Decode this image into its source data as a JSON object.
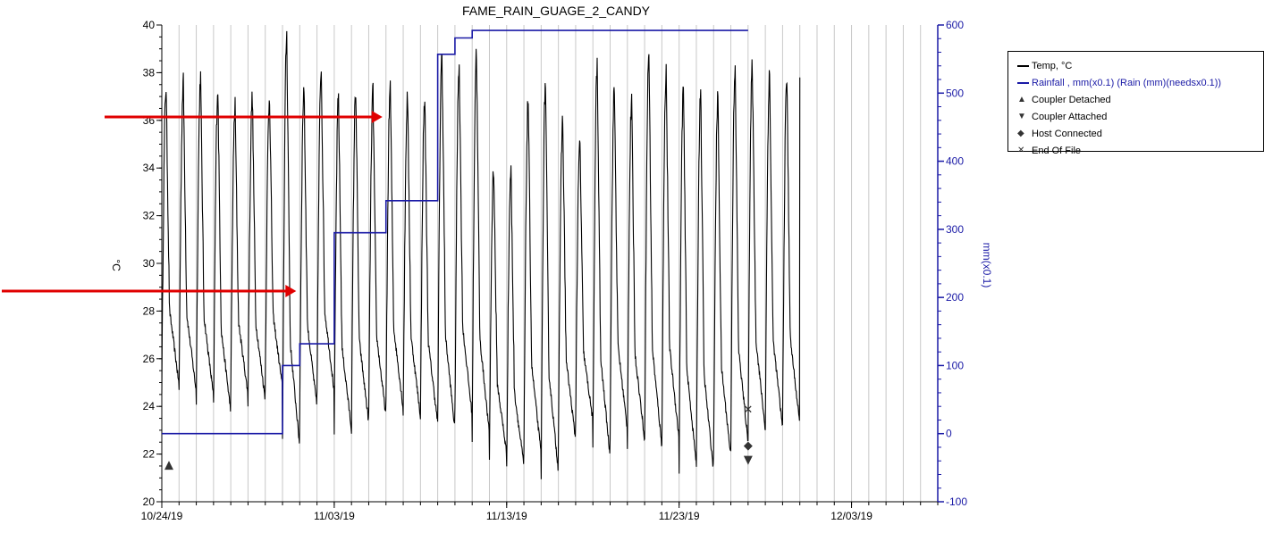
{
  "chart_data": {
    "type": "line",
    "title": "FAME_RAIN_GUAGE_2_CANDY",
    "ylabel": "°C",
    "y2label": "mm(x0.1)",
    "ylim": [
      20,
      40
    ],
    "y2lim": [
      -100,
      600
    ],
    "yticks": [
      "20",
      "22",
      "24",
      "26",
      "28",
      "30",
      "32",
      "34",
      "36",
      "38",
      "40"
    ],
    "y2ticks": [
      "-100",
      "0",
      "100",
      "200",
      "300",
      "400",
      "500",
      "600"
    ],
    "xlim": [
      "10/24/19",
      "12/08/19"
    ],
    "xticks": [
      "10/24/19",
      "11/03/19",
      "11/13/19",
      "11/23/19",
      "12/03/19"
    ],
    "grid": "vertical daily",
    "legend_position": "right",
    "series": [
      {
        "name": "Temp, °C",
        "axis": "left",
        "color": "#000000",
        "daily_min": [
          24.9,
          24.6,
          24.4,
          23.8,
          24.5,
          24.3,
          24.8,
          22.3,
          24.0,
          24.6,
          23.0,
          23.3,
          23.6,
          23.9,
          23.6,
          23.3,
          23.0,
          23.6,
          22.8,
          22.0,
          21.5,
          22.0,
          21.3,
          22.6,
          23.4,
          21.9,
          23.0,
          22.6,
          22.3,
          22.6,
          21.6,
          21.3,
          21.9,
          22.5,
          23.0,
          23.1,
          23.2
        ],
        "daily_max": [
          37.4,
          37.6,
          37.8,
          37.3,
          36.6,
          37.0,
          37.0,
          39.6,
          37.4,
          38.2,
          37.0,
          37.3,
          37.2,
          37.4,
          37.0,
          36.9,
          38.8,
          38.4,
          38.9,
          34.0,
          33.9,
          36.9,
          37.6,
          36.0,
          35.0,
          38.3,
          37.3,
          36.8,
          38.9,
          38.1,
          37.4,
          37.3,
          37.0,
          38.0,
          38.3,
          37.9,
          37.8
        ]
      },
      {
        "name": "Rainfall , mm(x0.1) (Rain (mm)(needsx0.1))",
        "axis": "right",
        "color": "#1a1aa6",
        "steps": [
          {
            "date": "10/24/19",
            "value": 0
          },
          {
            "date": "10/31/19",
            "value": 100
          },
          {
            "date": "11/01/19",
            "value": 132
          },
          {
            "date": "11/03/19",
            "value": 295
          },
          {
            "date": "11/06/19",
            "value": 342
          },
          {
            "date": "11/09/19",
            "value": 557
          },
          {
            "date": "11/10/19",
            "value": 581
          },
          {
            "date": "11/11/19",
            "value": 592
          },
          {
            "date": "11/27/19",
            "value": 592
          }
        ]
      }
    ],
    "events": [
      {
        "name": "Coupler Detached",
        "date": "10/24/19",
        "value": 21.6
      },
      {
        "name": "Host Connected",
        "date": "11/27/19",
        "value": 22.4
      },
      {
        "name": "Coupler Attached",
        "date": "11/27/19",
        "value": 21.8
      },
      {
        "name": "End Of File",
        "date": "11/27/19",
        "value": 23.9
      }
    ],
    "annotations": [
      {
        "type": "arrow",
        "color": "#e00000",
        "points_to_date": "11/06/19"
      },
      {
        "type": "arrow",
        "color": "#e00000",
        "points_to_date": "11/01/19"
      }
    ]
  },
  "legend": {
    "items": [
      {
        "label": "Temp, °C",
        "symbol": "line",
        "color": "#000000"
      },
      {
        "label": "Rainfall , mm(x0.1) (Rain (mm)(needsx0.1))",
        "symbol": "line",
        "color": "#1a1aa6"
      },
      {
        "label": "Coupler Detached",
        "symbol": "▲",
        "color": "#333333"
      },
      {
        "label": "Coupler Attached",
        "symbol": "▼",
        "color": "#333333"
      },
      {
        "label": "Host Connected",
        "symbol": "◆",
        "color": "#333333"
      },
      {
        "label": "End Of File",
        "symbol": "✕",
        "color": "#333333"
      }
    ]
  }
}
